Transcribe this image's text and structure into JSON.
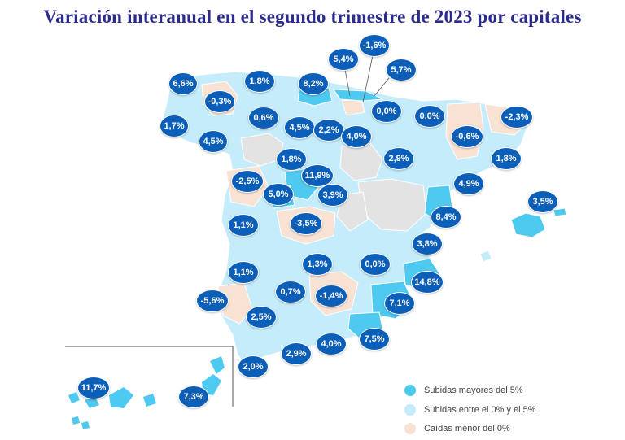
{
  "title": "Variación interanual en el segundo trimestre de 2023 por capitales",
  "colors": {
    "high": "#4ec9f0",
    "mid": "#c4ecfb",
    "low": "#f8e2d4",
    "nodata": "#e3e3e3",
    "bubble": "#0b5fb8",
    "title": "#2b2b8c"
  },
  "legend": {
    "high": "Subidas mayores del 5%",
    "mid": "Subidas entre el 0% y el 5%",
    "low": "Caídas menor del 0%"
  },
  "labels": {
    "coruna": "6,6%",
    "lugo": "-0,3%",
    "pontevedra": "1,7%",
    "ourense": "4,5%",
    "oviedo": "1,8%",
    "leon": "0,6%",
    "santander": "8,2%",
    "palencia": "4,5%",
    "burgos": "2,2%",
    "bilbao": "5,4%",
    "vitoria": "-1,6%",
    "sansebastian": "5,7%",
    "pamplona": "0,0%",
    "logrono": "4,0%",
    "huesca": "0,0%",
    "lleida": "-0,6%",
    "girona": "-2,3%",
    "zaragoza": "2,9%",
    "barcelona": "1,8%",
    "tarragona": "4,9%",
    "valladolid": "1,8%",
    "segovia": "11,9%",
    "salamanca": "-2,5%",
    "avila": "5,0%",
    "madrid": "3,9%",
    "palma": "3,5%",
    "castellon": "8,4%",
    "caceres": "1,1%",
    "toledo": "-3,5%",
    "valencia": "3,8%",
    "badajoz": "1,1%",
    "ciudadreal": "1,3%",
    "albacete": "0,0%",
    "alicante": "14,8%",
    "huelva": "-5,6%",
    "cordoba": "0,7%",
    "jaen": "-1,4%",
    "murcia": "7,1%",
    "sevilla": "2,5%",
    "granada": "4,0%",
    "almeria": "7,5%",
    "malaga": "2,9%",
    "cadiz": "2,0%",
    "lpgc": "11,7%",
    "tenerife": "7,3%"
  }
}
